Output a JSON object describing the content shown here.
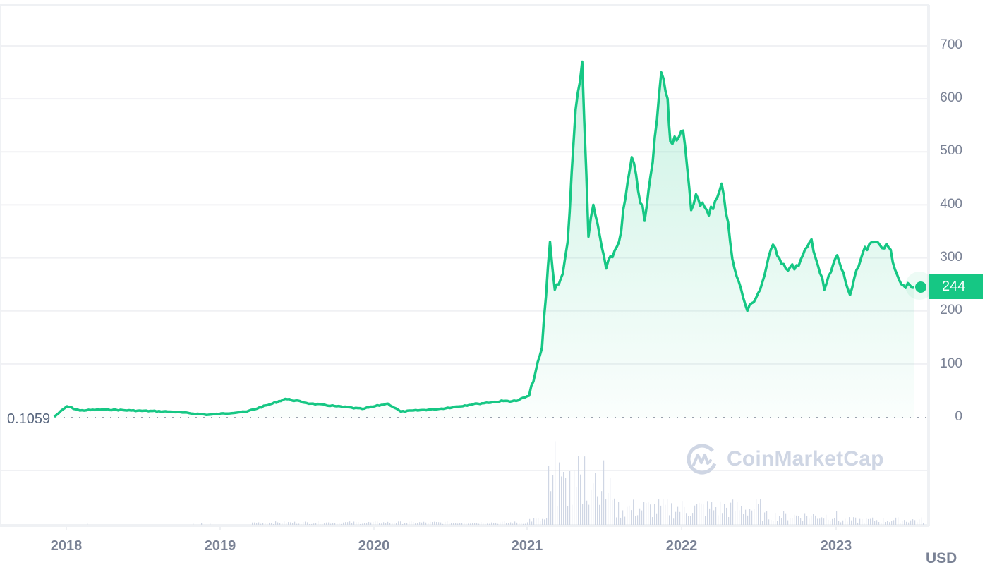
{
  "chart_data": {
    "type": "area",
    "title": "",
    "xlabel": "",
    "ylabel": "",
    "currency": "USD",
    "ylim": [
      0,
      750
    ],
    "y_ticks": [
      0,
      100,
      200,
      300,
      400,
      500,
      600,
      700
    ],
    "x_ticks": [
      "2018",
      "2019",
      "2020",
      "2021",
      "2022",
      "2023"
    ],
    "start_value": "0.1059",
    "current_value": "244",
    "grid": true,
    "colors": {
      "line": "#16c784",
      "fill": "#16c784",
      "volume": "#cfd6e4",
      "grid": "#f0f1f4",
      "axis_text": "#7a8295"
    },
    "series": [
      {
        "name": "Price (USD)",
        "points": [
          [
            "2017-12",
            0.1
          ],
          [
            "2018-01",
            20
          ],
          [
            "2018-02",
            12
          ],
          [
            "2018-04",
            14
          ],
          [
            "2018-06",
            12
          ],
          [
            "2018-09",
            10
          ],
          [
            "2018-12",
            4
          ],
          [
            "2019-03",
            10
          ],
          [
            "2019-05",
            25
          ],
          [
            "2019-06",
            34
          ],
          [
            "2019-08",
            25
          ],
          [
            "2019-10",
            20
          ],
          [
            "2019-12",
            15
          ],
          [
            "2020-02",
            25
          ],
          [
            "2020-03",
            10
          ],
          [
            "2020-06",
            15
          ],
          [
            "2020-09",
            25
          ],
          [
            "2020-11",
            30
          ],
          [
            "2020-12",
            30
          ],
          [
            "2021-01",
            40
          ],
          [
            "2021-02",
            130
          ],
          [
            "2021-02-20",
            330
          ],
          [
            "2021-03",
            240
          ],
          [
            "2021-03-20",
            270
          ],
          [
            "2021-04",
            330
          ],
          [
            "2021-04-20",
            580
          ],
          [
            "2021-05-05",
            670
          ],
          [
            "2021-05-20",
            340
          ],
          [
            "2021-06",
            400
          ],
          [
            "2021-07",
            280
          ],
          [
            "2021-08",
            330
          ],
          [
            "2021-09",
            490
          ],
          [
            "2021-10",
            370
          ],
          [
            "2021-10-20",
            480
          ],
          [
            "2021-11-10",
            650
          ],
          [
            "2021-11-25",
            600
          ],
          [
            "2021-12",
            520
          ],
          [
            "2022-01",
            540
          ],
          [
            "2022-01-20",
            390
          ],
          [
            "2022-02",
            420
          ],
          [
            "2022-03",
            380
          ],
          [
            "2022-04",
            440
          ],
          [
            "2022-05",
            280
          ],
          [
            "2022-06",
            200
          ],
          [
            "2022-07",
            240
          ],
          [
            "2022-08",
            325
          ],
          [
            "2022-09",
            280
          ],
          [
            "2022-10",
            285
          ],
          [
            "2022-11",
            335
          ],
          [
            "2022-12",
            240
          ],
          [
            "2023-01",
            305
          ],
          [
            "2023-02",
            230
          ],
          [
            "2023-03",
            310
          ],
          [
            "2023-04",
            330
          ],
          [
            "2023-05",
            320
          ],
          [
            "2023-06",
            250
          ],
          [
            "2023-07",
            244
          ]
        ]
      },
      {
        "name": "Volume",
        "description": "relative bars; spikes Feb-Jun 2021, elevated through 2022, low 2023"
      }
    ]
  },
  "axis": {
    "y_labels": [
      "700",
      "600",
      "500",
      "400",
      "300",
      "200",
      "100",
      "0"
    ],
    "x_labels": [
      "2018",
      "2019",
      "2020",
      "2021",
      "2022",
      "2023"
    ]
  },
  "labels": {
    "start_value": "0.1059",
    "current_price": "244",
    "currency": "USD",
    "watermark": "CoinMarketCap"
  },
  "geometry": {
    "y_label_tops": [
      54,
      129,
      204,
      280,
      355,
      430,
      506,
      581
    ],
    "x_label_lefts": [
      94,
      312,
      530,
      747,
      966,
      1185
    ]
  }
}
